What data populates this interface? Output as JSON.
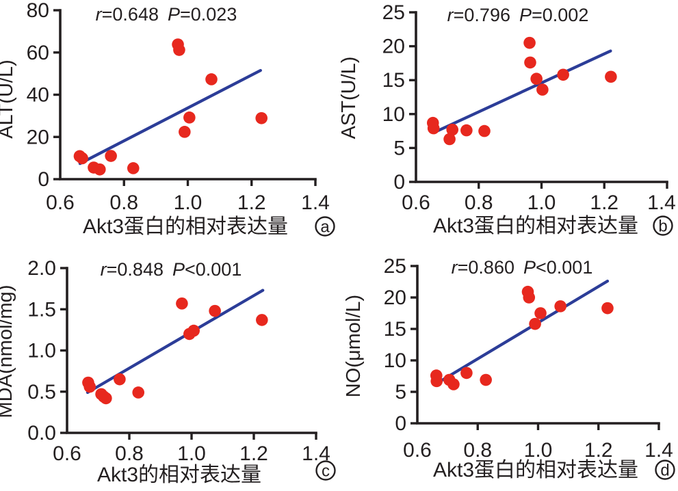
{
  "figure": {
    "background": "#ffffff",
    "point_color": "#e7281e",
    "trend_color": "#2c3d98",
    "axis_color": "#231f20",
    "text_color": "#231f20"
  },
  "chart_data": [
    {
      "panel_label": "a",
      "type": "scatter",
      "title": "r=0.648 P=0.023",
      "stats": {
        "r_label": "r",
        "r_value": "=0.648",
        "p_label": "P",
        "p_value": "=0.023"
      },
      "xlabel": "Akt3蛋白的相对表达量",
      "ylabel": "ALT(U/L)",
      "xlim": [
        0.6,
        1.4
      ],
      "ylim": [
        0,
        80
      ],
      "x_tick_labels": [
        "0.6",
        "0.8",
        "1.0",
        "1.2",
        "1.4"
      ],
      "y_tick_labels": [
        "0",
        "20",
        "40",
        "60",
        "80"
      ],
      "grid": false,
      "legend": "none",
      "points": [
        [
          0.661,
          10.9
        ],
        [
          0.669,
          9.9
        ],
        [
          0.705,
          5.5
        ],
        [
          0.724,
          4.6
        ],
        [
          0.759,
          11.0
        ],
        [
          0.829,
          5.2
        ],
        [
          0.969,
          63.8
        ],
        [
          0.973,
          61.2
        ],
        [
          0.99,
          22.4
        ],
        [
          1.005,
          29.2
        ],
        [
          1.074,
          47.3
        ],
        [
          1.231,
          28.9
        ]
      ],
      "trendline": {
        "x1": 0.662,
        "y1": 7.4,
        "x2": 1.228,
        "y2": 51.5
      }
    },
    {
      "panel_label": "b",
      "type": "scatter",
      "title": "r=0.796 P=0.002",
      "stats": {
        "r_label": "r",
        "r_value": "=0.796",
        "p_label": "P",
        "p_value": "=0.002"
      },
      "xlabel": "Akt3蛋白的相对表达量",
      "ylabel": "AST(U/L)",
      "xlim": [
        0.6,
        1.4
      ],
      "ylim": [
        0,
        25
      ],
      "x_tick_labels": [
        "0.6",
        "0.8",
        "1.0",
        "1.2",
        "1.4"
      ],
      "y_tick_labels": [
        "0",
        "5",
        "10",
        "15",
        "20",
        "25"
      ],
      "grid": false,
      "legend": "none",
      "points": [
        [
          0.654,
          8.7
        ],
        [
          0.656,
          7.9
        ],
        [
          0.707,
          6.3
        ],
        [
          0.716,
          7.7
        ],
        [
          0.761,
          7.6
        ],
        [
          0.818,
          7.5
        ],
        [
          0.962,
          20.5
        ],
        [
          0.964,
          17.6
        ],
        [
          0.984,
          15.2
        ],
        [
          1.003,
          13.6
        ],
        [
          1.069,
          15.8
        ],
        [
          1.221,
          15.5
        ]
      ],
      "trendline": {
        "x1": 0.663,
        "y1": 7.4,
        "x2": 1.22,
        "y2": 19.3
      }
    },
    {
      "panel_label": "c",
      "type": "scatter",
      "title": "r=0.848 P<0.001",
      "stats": {
        "r_label": "r",
        "r_value": "=0.848",
        "p_label": "P",
        "p_value": "<0.001"
      },
      "xlabel": "Akt3的相对表达量",
      "ylabel": "MDA(nmol/mg)",
      "xlim": [
        0.6,
        1.4
      ],
      "ylim": [
        0,
        2.0
      ],
      "x_tick_labels": [
        "0.6",
        "0.8",
        "1.0",
        "1.2",
        "1.4"
      ],
      "y_tick_labels": [
        "0.0",
        "0.5",
        "1.0",
        "1.5",
        "2.0"
      ],
      "grid": false,
      "legend": "none",
      "points": [
        [
          0.668,
          0.61
        ],
        [
          0.673,
          0.56
        ],
        [
          0.71,
          0.47
        ],
        [
          0.718,
          0.44
        ],
        [
          0.725,
          0.42
        ],
        [
          0.769,
          0.65
        ],
        [
          0.829,
          0.49
        ],
        [
          0.969,
          1.57
        ],
        [
          0.993,
          1.2
        ],
        [
          1.007,
          1.24
        ],
        [
          1.075,
          1.48
        ],
        [
          1.226,
          1.37
        ]
      ],
      "trendline": {
        "x1": 0.666,
        "y1": 0.49,
        "x2": 1.229,
        "y2": 1.73
      }
    },
    {
      "panel_label": "d",
      "type": "scatter",
      "title": "r=0.860 P<0.001",
      "stats": {
        "r_label": "r",
        "r_value": "=0.860",
        "p_label": "P",
        "p_value": "<0.001"
      },
      "xlabel": "Akt3蛋白的相对表达量",
      "ylabel": "NO(μmol/L)",
      "xlim": [
        0.6,
        1.4
      ],
      "ylim": [
        0,
        25
      ],
      "x_tick_labels": [
        "0.6",
        "0.8",
        "1.0",
        "1.2",
        "1.4"
      ],
      "y_tick_labels": [
        "0",
        "5",
        "10",
        "15",
        "20",
        "25"
      ],
      "grid": false,
      "legend": "none",
      "points": [
        [
          0.663,
          7.6
        ],
        [
          0.664,
          6.7
        ],
        [
          0.706,
          6.9
        ],
        [
          0.72,
          6.2
        ],
        [
          0.763,
          8.0
        ],
        [
          0.827,
          6.9
        ],
        [
          0.966,
          20.9
        ],
        [
          0.97,
          20.0
        ],
        [
          0.99,
          15.8
        ],
        [
          1.008,
          17.5
        ],
        [
          1.074,
          18.6
        ],
        [
          1.23,
          18.3
        ]
      ],
      "trendline": {
        "x1": 0.68,
        "y1": 6.8,
        "x2": 1.23,
        "y2": 22.6
      }
    }
  ]
}
